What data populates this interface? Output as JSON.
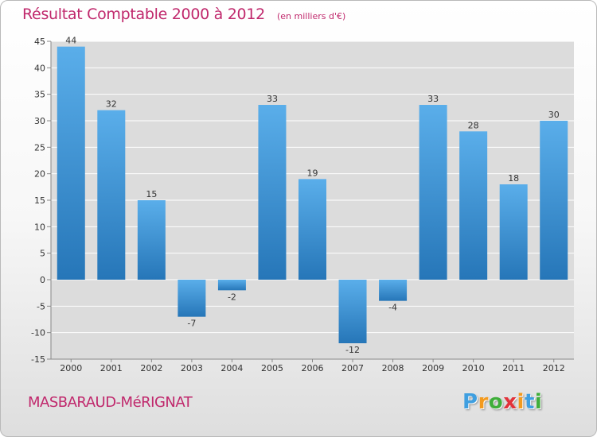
{
  "chart_data": {
    "type": "bar",
    "title": "Résultat Comptable 2000 à 2012",
    "subtitle": "(en milliers d'€)",
    "categories": [
      "2000",
      "2001",
      "2002",
      "2003",
      "2004",
      "2005",
      "2006",
      "2007",
      "2008",
      "2009",
      "2010",
      "2011",
      "2012"
    ],
    "values": [
      44,
      32,
      15,
      -7,
      -2,
      33,
      19,
      -12,
      -4,
      33,
      28,
      18,
      30
    ],
    "ylim": [
      -15,
      45
    ],
    "yticks": [
      45,
      40,
      35,
      30,
      25,
      20,
      15,
      10,
      5,
      0,
      -5,
      -10,
      -15
    ],
    "grid": true,
    "legend": "none",
    "colors": {
      "bar_top": "#5aaeea",
      "bar_bottom": "#2676b8",
      "title": "#c0286c",
      "plot_bg": "#dcdcdc"
    }
  },
  "commune": "MASBARAUD-MéRIGNAT",
  "logo": {
    "letters": [
      "P",
      "r",
      "o",
      "x",
      "i",
      "t",
      "i"
    ],
    "colors": [
      "#3f9fe0",
      "#f39a1e",
      "#3fae3a",
      "#e2323a",
      "#f39a1e",
      "#3f9fe0",
      "#3fae3a"
    ]
  }
}
